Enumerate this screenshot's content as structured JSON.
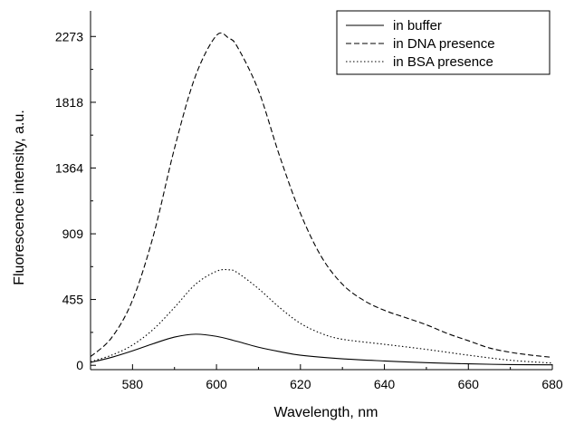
{
  "chart_data": {
    "type": "line",
    "title": "",
    "xlabel": "Wavelength, nm",
    "ylabel": "Fluorescence intensity, a.u.",
    "xlim": [
      570,
      680
    ],
    "ylim": [
      -30,
      2450
    ],
    "xticks": [
      580,
      600,
      620,
      640,
      660,
      680
    ],
    "yticks": [
      0,
      455,
      909,
      1364,
      1818,
      2273
    ],
    "grid": false,
    "legend_position": "top-right",
    "series": [
      {
        "name": "in buffer",
        "style": "solid",
        "x": [
          570,
          575,
          580,
          585,
          590,
          595,
          600,
          605,
          610,
          615,
          620,
          630,
          640,
          650,
          660,
          670,
          680
        ],
        "y": [
          20,
          55,
          100,
          150,
          195,
          215,
          200,
          165,
          125,
          95,
          70,
          45,
          30,
          18,
          10,
          5,
          3
        ]
      },
      {
        "name": "in DNA presence",
        "style": "dashed",
        "x": [
          570,
          575,
          580,
          585,
          590,
          595,
          600,
          603,
          605,
          610,
          615,
          620,
          625,
          630,
          635,
          640,
          645,
          650,
          655,
          660,
          665,
          670,
          675,
          680
        ],
        "y": [
          60,
          190,
          450,
          900,
          1500,
          2000,
          2280,
          2260,
          2200,
          1900,
          1450,
          1050,
          750,
          560,
          450,
          380,
          330,
          280,
          220,
          170,
          120,
          90,
          70,
          55
        ]
      },
      {
        "name": "in BSA presence",
        "style": "dotted",
        "x": [
          570,
          575,
          580,
          585,
          590,
          595,
          600,
          603,
          605,
          610,
          615,
          620,
          625,
          630,
          640,
          650,
          660,
          670,
          680
        ],
        "y": [
          25,
          70,
          140,
          250,
          400,
          560,
          650,
          660,
          640,
          530,
          400,
          290,
          220,
          180,
          145,
          110,
          70,
          35,
          15
        ]
      }
    ]
  }
}
